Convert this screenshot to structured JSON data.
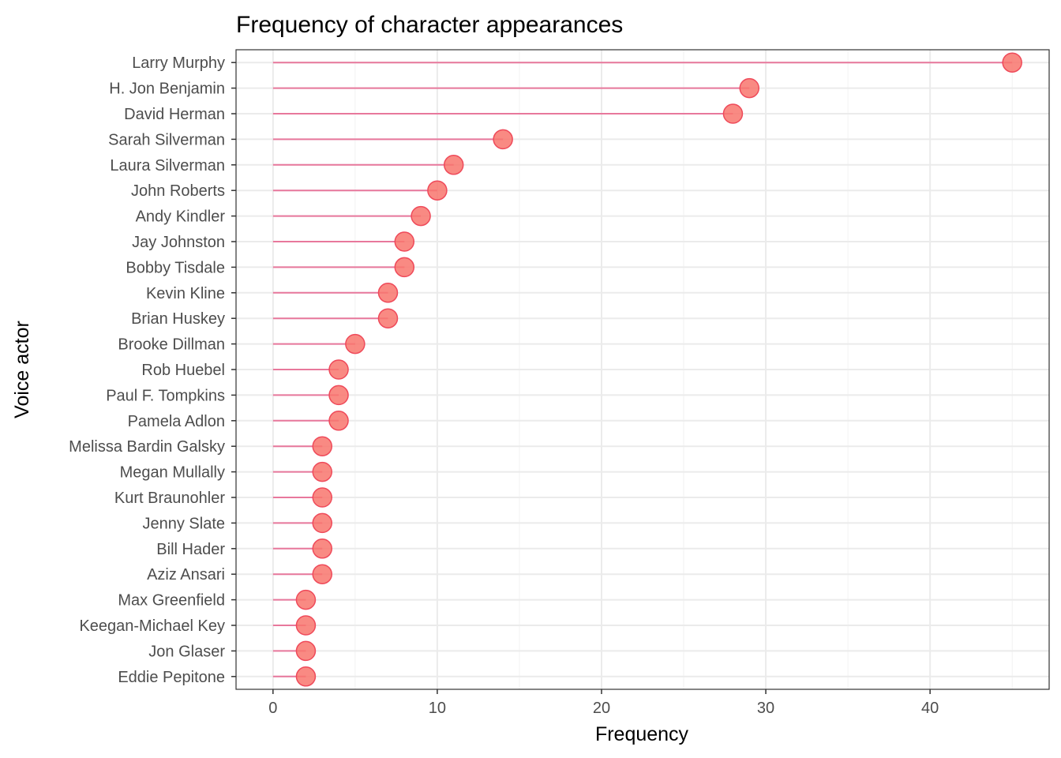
{
  "chart_data": {
    "type": "lollipop",
    "title": "Frequency of character appearances",
    "xlabel": "Frequency",
    "ylabel": "Voice actor",
    "xlim": [
      -2.25,
      47.25
    ],
    "x_ticks": [
      0,
      10,
      20,
      30,
      40
    ],
    "grid": true,
    "colors": {
      "segment": "#e8789c",
      "point_fill": "#f8766d",
      "point_stroke": "#ef4a5a",
      "grid_major": "#ebebeb",
      "grid_minor": "#f2f2f2",
      "panel_border": "#333333",
      "tick_label": "#4d4d4d"
    },
    "categories": [
      "Larry Murphy",
      "H. Jon Benjamin",
      "David Herman",
      "Sarah Silverman",
      "Laura Silverman",
      "John Roberts",
      "Andy Kindler",
      "Jay Johnston",
      "Bobby Tisdale",
      "Kevin Kline",
      "Brian Huskey",
      "Brooke Dillman",
      "Rob Huebel",
      "Paul F. Tompkins",
      "Pamela Adlon",
      "Melissa Bardin Galsky",
      "Megan Mullally",
      "Kurt Braunohler",
      "Jenny Slate",
      "Bill Hader",
      "Aziz Ansari",
      "Max Greenfield",
      "Keegan-Michael Key",
      "Jon Glaser",
      "Eddie Pepitone"
    ],
    "values": [
      45,
      29,
      28,
      14,
      11,
      10,
      9,
      8,
      8,
      7,
      7,
      5,
      4,
      4,
      4,
      3,
      3,
      3,
      3,
      3,
      3,
      2,
      2,
      2,
      2
    ]
  }
}
